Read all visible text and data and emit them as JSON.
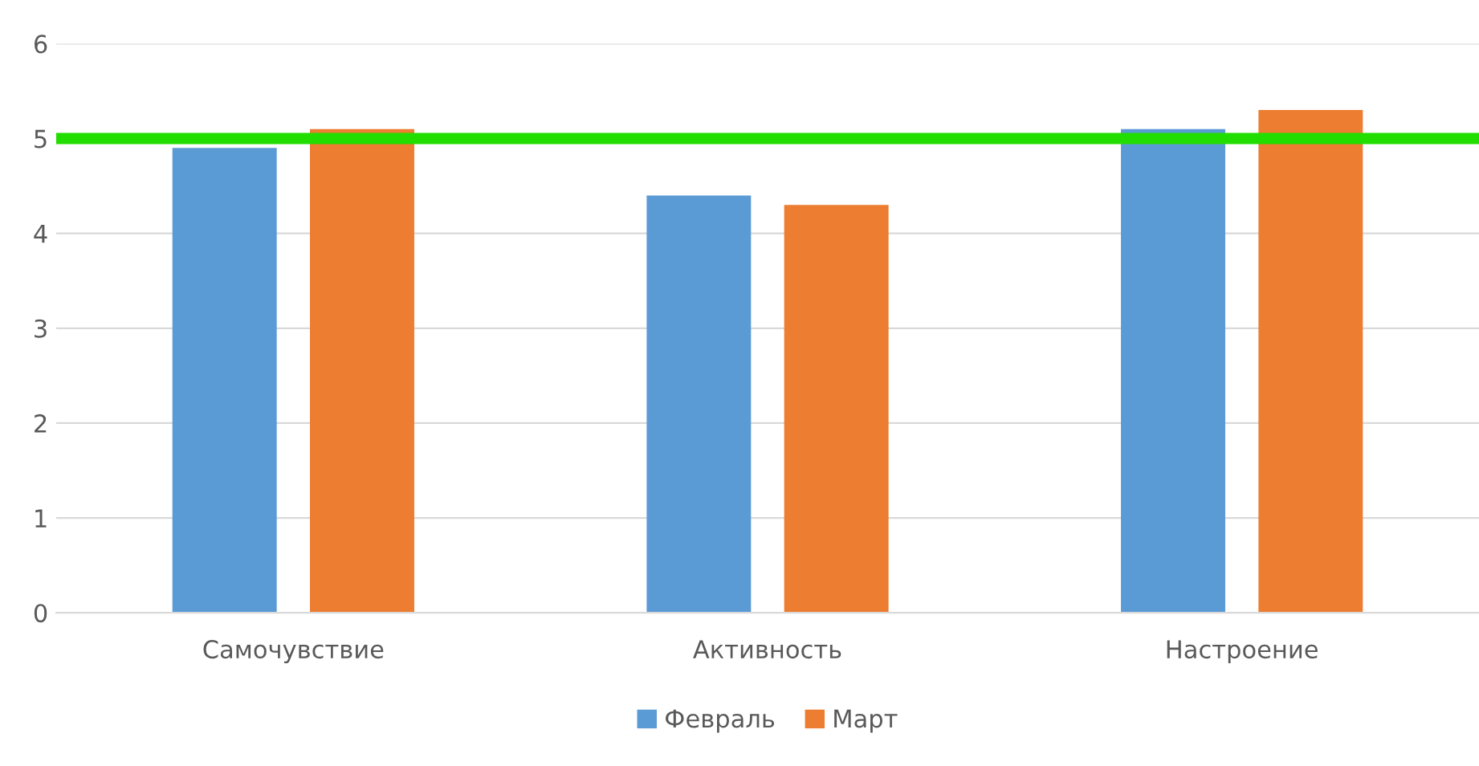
{
  "chart_data": {
    "type": "bar",
    "categories": [
      "Самочувствие",
      "Активность",
      "Настроение"
    ],
    "series": [
      {
        "name": "Февраль",
        "color": "#5b9bd5",
        "values": [
          4.9,
          4.4,
          5.1
        ]
      },
      {
        "name": "Март",
        "color": "#ed7d31",
        "values": [
          5.1,
          4.3,
          5.3
        ]
      }
    ],
    "ylim": [
      0,
      6
    ],
    "yticks": [
      0,
      1,
      2,
      3,
      4,
      5,
      6
    ],
    "grid": "y",
    "legend": "bottom",
    "ref_lines": [
      {
        "axis": "y",
        "value": 5,
        "color": "#22dd00",
        "line_style": "solid"
      }
    ]
  }
}
